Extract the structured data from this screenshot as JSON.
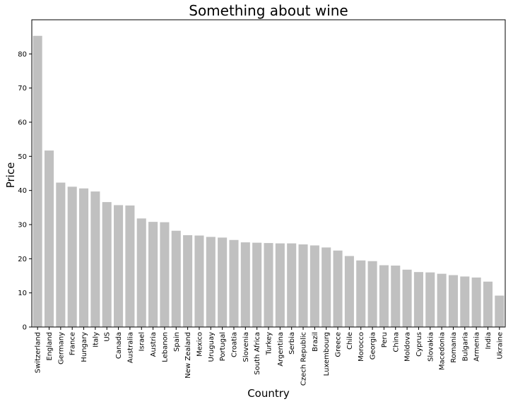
{
  "chart_data": {
    "type": "bar",
    "title": "Something about wine",
    "xlabel": "Country",
    "ylabel": "Price",
    "ylim": [
      0,
      90
    ],
    "yticks": [
      0,
      10,
      20,
      30,
      40,
      50,
      60,
      70,
      80
    ],
    "bar_color": "#c0c0c0",
    "grid": false,
    "categories": [
      "Switzerland",
      "England",
      "Germany",
      "France",
      "Hungary",
      "Italy",
      "US",
      "Canada",
      "Australia",
      "Israel",
      "Austria",
      "Lebanon",
      "Spain",
      "New Zealand",
      "Mexico",
      "Uruguay",
      "Portugal",
      "Croatia",
      "Slovenia",
      "South Africa",
      "Turkey",
      "Argentina",
      "Serbia",
      "Czech Republic",
      "Brazil",
      "Luxembourg",
      "Greece",
      "Chile",
      "Morocco",
      "Georgia",
      "Peru",
      "China",
      "Moldova",
      "Cyprus",
      "Slovakia",
      "Macedonia",
      "Romania",
      "Bulgaria",
      "Armenia",
      "India",
      "Ukraine"
    ],
    "values": [
      85.3,
      51.7,
      42.3,
      41.1,
      40.6,
      39.7,
      36.6,
      35.7,
      35.6,
      31.8,
      30.8,
      30.7,
      28.2,
      26.9,
      26.8,
      26.4,
      26.2,
      25.5,
      24.8,
      24.7,
      24.6,
      24.5,
      24.5,
      24.2,
      23.9,
      23.3,
      22.4,
      20.8,
      19.5,
      19.3,
      18.1,
      18.0,
      16.8,
      16.1,
      16.0,
      15.6,
      15.2,
      14.8,
      14.5,
      13.3,
      9.2
    ]
  }
}
